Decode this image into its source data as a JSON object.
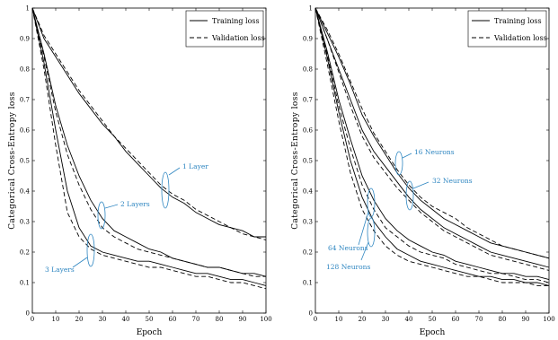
{
  "figure": {
    "ylabel": "Categorical Cross-Entropy loss",
    "xlabel": "Epoch",
    "legend": {
      "training": "Training loss",
      "validation": "Validation loss"
    }
  },
  "colors": {
    "line": "#000000",
    "annotation": "#2e86c1"
  },
  "chart_data": [
    {
      "type": "line",
      "title": "",
      "xlabel": "Epoch",
      "ylabel": "Categorical Cross-Entropy loss",
      "xlim": [
        0,
        100
      ],
      "ylim": [
        0,
        1
      ],
      "xticks": [
        0,
        10,
        20,
        30,
        40,
        50,
        60,
        70,
        80,
        90,
        100
      ],
      "yticks": [
        0,
        0.1,
        0.2,
        0.3,
        0.4,
        0.5,
        0.6,
        0.7,
        0.8,
        0.9,
        1
      ],
      "grid": false,
      "legend_position": "top-right",
      "x": [
        0,
        5,
        10,
        15,
        20,
        25,
        30,
        35,
        40,
        45,
        50,
        55,
        60,
        65,
        70,
        75,
        80,
        85,
        90,
        95,
        100
      ],
      "series": [
        {
          "name": "1 Layer",
          "kind": "Training loss",
          "values": [
            1.0,
            0.9,
            0.84,
            0.78,
            0.72,
            0.67,
            0.62,
            0.58,
            0.53,
            0.49,
            0.45,
            0.41,
            0.38,
            0.36,
            0.33,
            0.31,
            0.29,
            0.28,
            0.27,
            0.25,
            0.25
          ]
        },
        {
          "name": "1 Layer",
          "kind": "Validation loss",
          "values": [
            1.0,
            0.91,
            0.85,
            0.79,
            0.73,
            0.68,
            0.63,
            0.58,
            0.54,
            0.5,
            0.46,
            0.42,
            0.39,
            0.37,
            0.34,
            0.32,
            0.3,
            0.28,
            0.26,
            0.25,
            0.24
          ]
        },
        {
          "name": "2 Layers",
          "kind": "Training loss",
          "values": [
            1.0,
            0.85,
            0.68,
            0.55,
            0.45,
            0.37,
            0.31,
            0.27,
            0.25,
            0.23,
            0.21,
            0.2,
            0.18,
            0.17,
            0.16,
            0.15,
            0.15,
            0.14,
            0.13,
            0.13,
            0.12
          ]
        },
        {
          "name": "2 Layers",
          "kind": "Validation loss",
          "values": [
            1.0,
            0.84,
            0.66,
            0.52,
            0.42,
            0.34,
            0.28,
            0.25,
            0.23,
            0.21,
            0.2,
            0.19,
            0.18,
            0.17,
            0.16,
            0.15,
            0.15,
            0.14,
            0.13,
            0.12,
            0.12
          ]
        },
        {
          "name": "3 Layers",
          "kind": "Training loss",
          "values": [
            1.0,
            0.82,
            0.6,
            0.4,
            0.28,
            0.22,
            0.2,
            0.19,
            0.18,
            0.17,
            0.17,
            0.16,
            0.15,
            0.14,
            0.13,
            0.13,
            0.12,
            0.11,
            0.11,
            0.1,
            0.09
          ]
        },
        {
          "name": "3 Layers",
          "kind": "Validation loss",
          "values": [
            1.0,
            0.8,
            0.55,
            0.33,
            0.25,
            0.21,
            0.19,
            0.18,
            0.17,
            0.16,
            0.15,
            0.15,
            0.14,
            0.13,
            0.12,
            0.12,
            0.11,
            0.1,
            0.1,
            0.09,
            0.08
          ]
        }
      ],
      "annotations": [
        "1 Layer",
        "2 Layers",
        "3 Layers"
      ]
    },
    {
      "type": "line",
      "title": "",
      "xlabel": "Epoch",
      "ylabel": "Categorical Cross-Entropy loss",
      "xlim": [
        0,
        100
      ],
      "ylim": [
        0,
        1
      ],
      "xticks": [
        0,
        10,
        20,
        30,
        40,
        50,
        60,
        70,
        80,
        90,
        100
      ],
      "yticks": [
        0,
        0.1,
        0.2,
        0.3,
        0.4,
        0.5,
        0.6,
        0.7,
        0.8,
        0.9,
        1
      ],
      "grid": false,
      "legend_position": "top-right",
      "x": [
        0,
        5,
        10,
        15,
        20,
        25,
        30,
        35,
        40,
        45,
        50,
        55,
        60,
        65,
        70,
        75,
        80,
        85,
        90,
        95,
        100
      ],
      "series": [
        {
          "name": "16 Neurons",
          "kind": "Training loss",
          "values": [
            1.0,
            0.92,
            0.84,
            0.75,
            0.65,
            0.58,
            0.52,
            0.46,
            0.41,
            0.37,
            0.34,
            0.31,
            0.29,
            0.27,
            0.25,
            0.23,
            0.22,
            0.21,
            0.2,
            0.19,
            0.18
          ]
        },
        {
          "name": "16 Neurons",
          "kind": "Validation loss",
          "values": [
            1.0,
            0.93,
            0.85,
            0.76,
            0.67,
            0.59,
            0.53,
            0.47,
            0.42,
            0.38,
            0.35,
            0.33,
            0.31,
            0.28,
            0.26,
            0.24,
            0.22,
            0.21,
            0.2,
            0.19,
            0.18
          ]
        },
        {
          "name": "32 Neurons",
          "kind": "Training loss",
          "values": [
            1.0,
            0.9,
            0.8,
            0.7,
            0.6,
            0.53,
            0.48,
            0.43,
            0.38,
            0.34,
            0.31,
            0.28,
            0.26,
            0.24,
            0.22,
            0.2,
            0.19,
            0.18,
            0.17,
            0.16,
            0.15
          ]
        },
        {
          "name": "32 Neurons",
          "kind": "Validation loss",
          "values": [
            1.0,
            0.9,
            0.79,
            0.68,
            0.58,
            0.51,
            0.46,
            0.41,
            0.37,
            0.33,
            0.3,
            0.27,
            0.25,
            0.23,
            0.21,
            0.19,
            0.18,
            0.17,
            0.16,
            0.15,
            0.14
          ]
        },
        {
          "name": "64 Neurons",
          "kind": "Training loss",
          "values": [
            1.0,
            0.86,
            0.7,
            0.57,
            0.45,
            0.37,
            0.31,
            0.27,
            0.24,
            0.22,
            0.2,
            0.19,
            0.17,
            0.16,
            0.15,
            0.14,
            0.13,
            0.13,
            0.12,
            0.12,
            0.11
          ]
        },
        {
          "name": "64 Neurons",
          "kind": "Validation loss",
          "values": [
            1.0,
            0.85,
            0.68,
            0.54,
            0.42,
            0.34,
            0.28,
            0.25,
            0.22,
            0.2,
            0.19,
            0.18,
            0.16,
            0.15,
            0.14,
            0.13,
            0.13,
            0.12,
            0.11,
            0.11,
            0.1
          ]
        },
        {
          "name": "128 Neurons",
          "kind": "Training loss",
          "values": [
            1.0,
            0.84,
            0.66,
            0.5,
            0.38,
            0.3,
            0.25,
            0.21,
            0.19,
            0.17,
            0.16,
            0.15,
            0.14,
            0.13,
            0.12,
            0.12,
            0.11,
            0.11,
            0.1,
            0.1,
            0.09
          ]
        },
        {
          "name": "128 Neurons",
          "kind": "Validation loss",
          "values": [
            1.0,
            0.82,
            0.63,
            0.46,
            0.34,
            0.27,
            0.22,
            0.19,
            0.17,
            0.16,
            0.15,
            0.14,
            0.13,
            0.12,
            0.12,
            0.11,
            0.1,
            0.1,
            0.1,
            0.09,
            0.09
          ]
        }
      ],
      "annotations": [
        "16 Neurons",
        "32 Neurons",
        "64 Neurons",
        "128 Neurons"
      ]
    }
  ]
}
